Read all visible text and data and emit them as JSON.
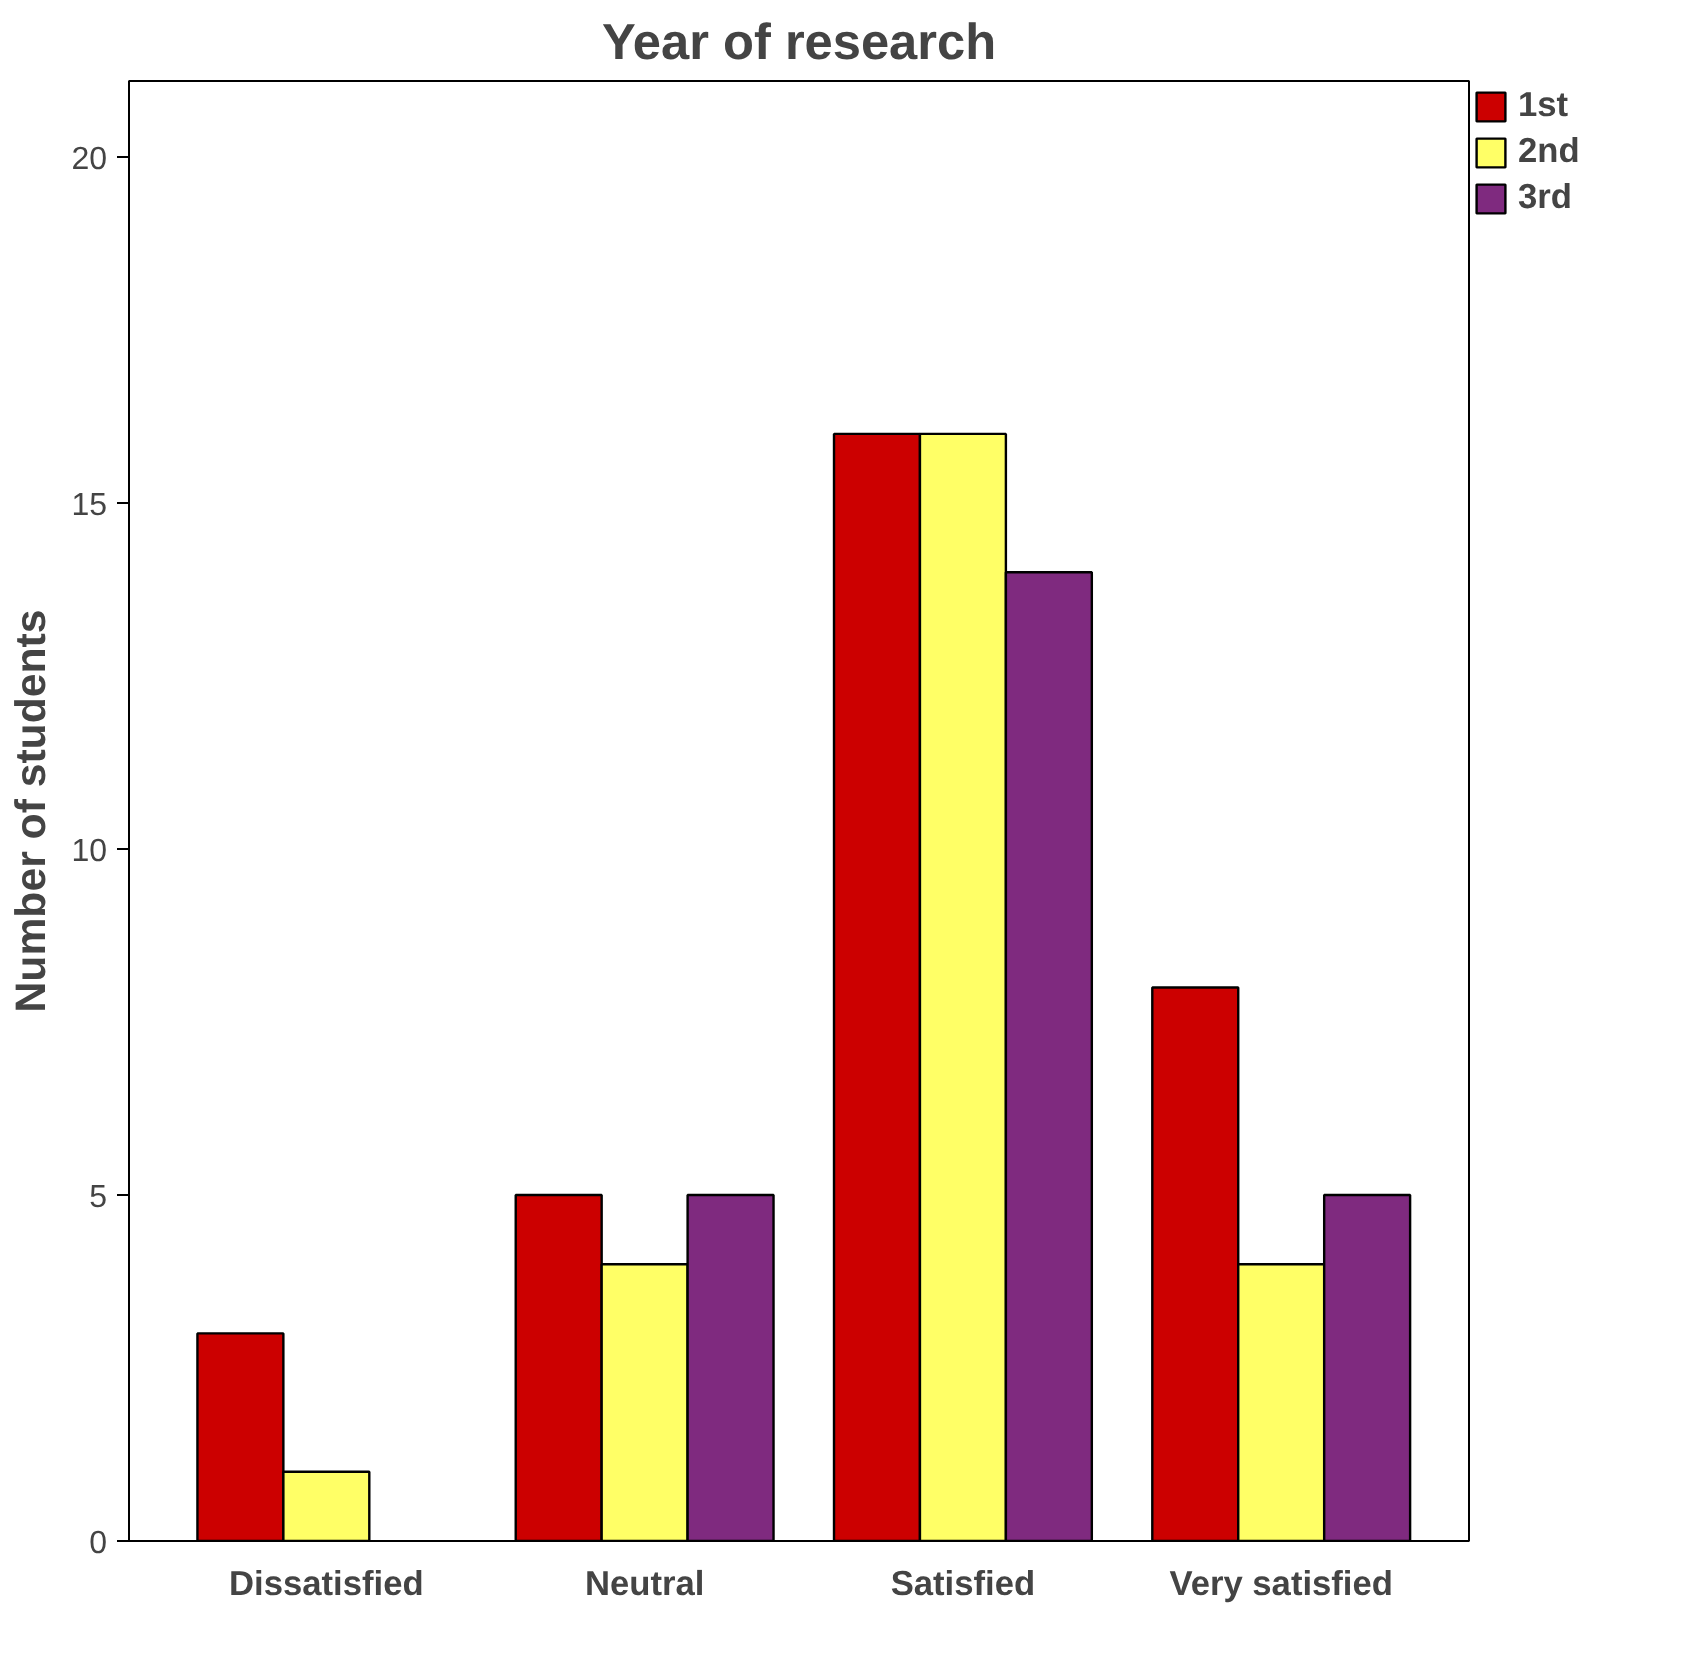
{
  "chart_data": {
    "type": "bar",
    "title": "Year of research",
    "ylabel": "Number of students",
    "categories": [
      "Dissatisfied",
      "Neutral",
      "Satisfied",
      "Very satisfied"
    ],
    "series": [
      {
        "name": "1st",
        "color": "#cc0000",
        "values": [
          3,
          5,
          16,
          8
        ]
      },
      {
        "name": "2nd",
        "color": "#ffff66",
        "values": [
          1,
          4,
          16,
          4
        ]
      },
      {
        "name": "3rd",
        "color": "#7f2a7f",
        "values": [
          null,
          5,
          14,
          5
        ]
      }
    ],
    "ylim": [
      0,
      21.1
    ],
    "yticks": [
      0,
      5,
      10,
      15,
      20
    ],
    "grid": false,
    "legend": "top right"
  }
}
